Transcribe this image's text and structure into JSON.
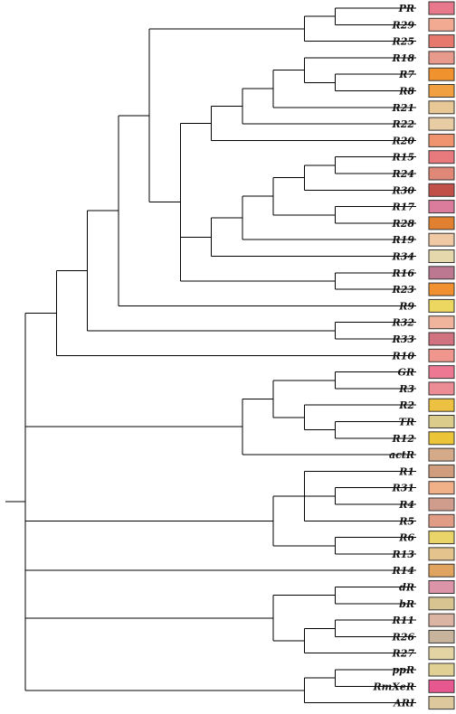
{
  "tree": {
    "children": [
      {
        "children": [
          {
            "children": [
              {
                "children": [
                  {
                    "children": [
                      {
                        "children": [
                          {
                            "children": [
                              {
                                "leaf": "PR"
                              },
                              {
                                "leaf": "R29"
                              }
                            ]
                          },
                          {
                            "leaf": "R25"
                          }
                        ]
                      },
                      {
                        "children": [
                          {
                            "children": [
                              {
                                "children": [
                                  {
                                    "children": [
                                      {
                                        "children": [
                                          {
                                            "leaf": "R18"
                                          },
                                          {
                                            "children": [
                                              {
                                                "leaf": "R7"
                                              },
                                              {
                                                "leaf": "R8"
                                              }
                                            ]
                                          }
                                        ]
                                      },
                                      {
                                        "leaf": "R21"
                                      }
                                    ]
                                  },
                                  {
                                    "leaf": "R22"
                                  }
                                ]
                              },
                              {
                                "leaf": "R20"
                              }
                            ]
                          },
                          {
                            "children": [
                              {
                                "children": [
                                  {
                                    "children": [
                                      {
                                        "children": [
                                          {
                                            "children": [
                                              {
                                                "leaf": "R15"
                                              },
                                              {
                                                "leaf": "R24"
                                              }
                                            ]
                                          },
                                          {
                                            "leaf": "R30"
                                          }
                                        ]
                                      },
                                      {
                                        "children": [
                                          {
                                            "leaf": "R17"
                                          },
                                          {
                                            "leaf": "R28"
                                          }
                                        ]
                                      }
                                    ]
                                  },
                                  {
                                    "leaf": "R19"
                                  }
                                ]
                              },
                              {
                                "leaf": "R34"
                              }
                            ]
                          },
                          {
                            "children": [
                              {
                                "leaf": "R16"
                              },
                              {
                                "leaf": "R23"
                              }
                            ]
                          }
                        ]
                      }
                    ]
                  },
                  {
                    "leaf": "R9"
                  }
                ]
              },
              {
                "children": [
                  {
                    "leaf": "R32"
                  },
                  {
                    "leaf": "R33"
                  }
                ]
              }
            ]
          },
          {
            "leaf": "R10"
          }
        ]
      },
      {
        "children": [
          {
            "children": [
              {
                "children": [
                  {
                    "leaf": "GR"
                  },
                  {
                    "leaf": "R3"
                  }
                ]
              },
              {
                "children": [
                  {
                    "leaf": "R2"
                  },
                  {
                    "children": [
                      {
                        "leaf": "TR"
                      },
                      {
                        "leaf": "R12"
                      }
                    ]
                  }
                ]
              }
            ]
          },
          {
            "leaf": "actR"
          }
        ]
      },
      {
        "children": [
          {
            "children": [
              {
                "leaf": "R1"
              },
              {
                "children": [
                  {
                    "leaf": "R31"
                  },
                  {
                    "leaf": "R4"
                  }
                ]
              },
              {
                "leaf": "R5"
              }
            ]
          },
          {
            "children": [
              {
                "leaf": "R6"
              },
              {
                "leaf": "R13"
              }
            ]
          }
        ]
      },
      {
        "leaf": "R14"
      },
      {
        "children": [
          {
            "children": [
              {
                "leaf": "dR"
              },
              {
                "leaf": "bR"
              }
            ]
          },
          {
            "children": [
              {
                "children": [
                  {
                    "leaf": "R11"
                  },
                  {
                    "leaf": "R26"
                  }
                ]
              },
              {
                "leaf": "R27"
              }
            ]
          }
        ]
      },
      {
        "children": [
          {
            "children": [
              {
                "leaf": "ppR"
              },
              {
                "leaf": "RmXeR"
              }
            ]
          },
          {
            "leaf": "ARI"
          }
        ]
      }
    ]
  },
  "leaf_colors": {
    "PR": "#e8788c",
    "R29": "#f2ab92",
    "R25": "#e6786e",
    "R18": "#e89a8c",
    "R7": "#f0932e",
    "R8": "#f0a040",
    "R21": "#e8c896",
    "R22": "#e8cca4",
    "R20": "#f09470",
    "R15": "#e87a7e",
    "R24": "#e08878",
    "R30": "#c05048",
    "R17": "#dc7c9c",
    "R28": "#e08030",
    "R19": "#f0c8a4",
    "R34": "#e4d8ac",
    "R16": "#bc7890",
    "R23": "#f09030",
    "R9": "#ecd860",
    "R32": "#f0b49c",
    "R33": "#d07280",
    "R10": "#f0968c",
    "GR": "#ec7894",
    "R3": "#ec8c94",
    "R2": "#ecc040",
    "TR": "#dccc8c",
    "R12": "#ecc438",
    "actR": "#d4aa88",
    "R1": "#d09e7c",
    "R31": "#f0b088",
    "R4": "#d09c8c",
    "R5": "#e09c84",
    "R6": "#e8d468",
    "R13": "#e4c48c",
    "R14": "#e0a460",
    "dR": "#dc94a8",
    "bR": "#d8c490",
    "R11": "#dcb4a4",
    "R26": "#c8b49c",
    "R27": "#e4d4a4",
    "ppR": "#e0d094",
    "RmXeR": "#e85890",
    "ARI": "#dcc89c"
  }
}
